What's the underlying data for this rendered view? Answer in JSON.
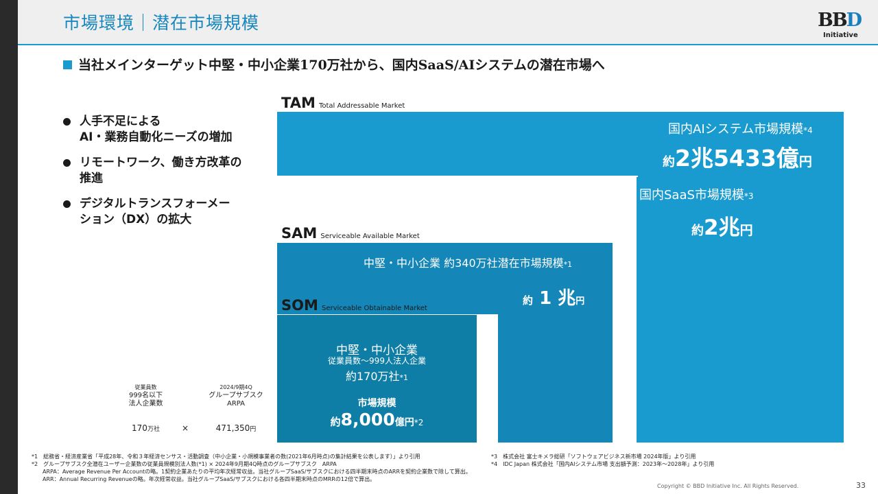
{
  "header": {
    "title": "市場環境｜潜在市場規模"
  },
  "logo": {
    "mark": "BBD",
    "sub": "Initiative"
  },
  "subtitle": "当社メインターゲット中堅・中小企業170万社から、国内SaaS/AIシステムの潜在市場へ",
  "bullets": [
    {
      "line1": "人手不足による",
      "line2": "AI・業務自動化ニーズの増加"
    },
    {
      "line1": "リモートワーク、働き方改革の",
      "line2": "推進"
    },
    {
      "line1": "デジタルトランスフォーメー",
      "line2": "ション（DX）の拡大"
    }
  ],
  "tam": {
    "abbr": "TAM",
    "full": "Total Addressable Market",
    "title": "国内AIシステム市場規模",
    "title_note": "*4",
    "prefix": "約",
    "value": "2兆5433億",
    "unit": "円"
  },
  "saas": {
    "title": "国内SaaS市場規模",
    "title_note": "*3",
    "prefix": "約",
    "value": "2兆",
    "unit": "円"
  },
  "sam": {
    "abbr": "SAM",
    "full": "Serviceable Available Market",
    "title": "中堅・中小企業 約340万社潜在市場規模",
    "title_note": "*1",
    "prefix": "約",
    "value": " 1 兆",
    "unit": "円"
  },
  "som": {
    "abbr": "SOM",
    "full": "Serviceable Obtainable Market",
    "title": "中堅・中小企業",
    "sub": "従業員数～999人法人企業",
    "count": "約170万社",
    "count_note": "*1",
    "market_label": "市場規模",
    "prefix": "約",
    "value": "8,000",
    "unit": "億円",
    "value_note": "*2"
  },
  "calc": {
    "col1_label1": "従業員数",
    "col1_label2": "999名以下",
    "col1_label3": "法人企業数",
    "col2_label1": "2024/9期4Q",
    "col2_label2": "グループサブスク",
    "col2_label3": "ARPA",
    "col1_value": "170",
    "col1_unit": "万社",
    "times": "×",
    "col2_value": "471,350",
    "col2_unit": "円"
  },
  "notes_left": [
    "*1　総務省・経済産業省「平成28年、令和３年経済センサス・活動調査（中小企業・小規模事業者の数(2021年6月時点)の集計結果を公表します）」より引用",
    "*2　グループサブスク全潜在ユーザー企業数の従業員規模別法人数(*1) × 2024年9月期4Q時点のグループサブスク　ARPA",
    "　　ARPA：Average Revenue Per Accountの略。1契約企業あたりの平均年次経常収益。当社グループSaaS/サブスクにおける四半期末時点のARRを契約企業数で除して算出。",
    "　　ARR：Annual Recurring Revenueの略。年次経常収益。当社グループSaaS/サブスクにおける各四半期末時点のMRRの12倍で算出。"
  ],
  "notes_right": [
    "*3　株式会社 富士キメラ総研「ソフトウェアビジネス新市場 2024年版」より引用",
    "*4　IDC Japan 株式会社「国内AIシステム市場 支出額予測：2023年～2028年」より引用"
  ],
  "footer": {
    "copyright": "Copyright © BBD Initiative Inc. All Rights Reserved.",
    "page": "33"
  },
  "colors": {
    "tam": "#1a9bd0",
    "sam": "#1486b8",
    "som": "#0e7ea6",
    "title": "#1787bd"
  }
}
